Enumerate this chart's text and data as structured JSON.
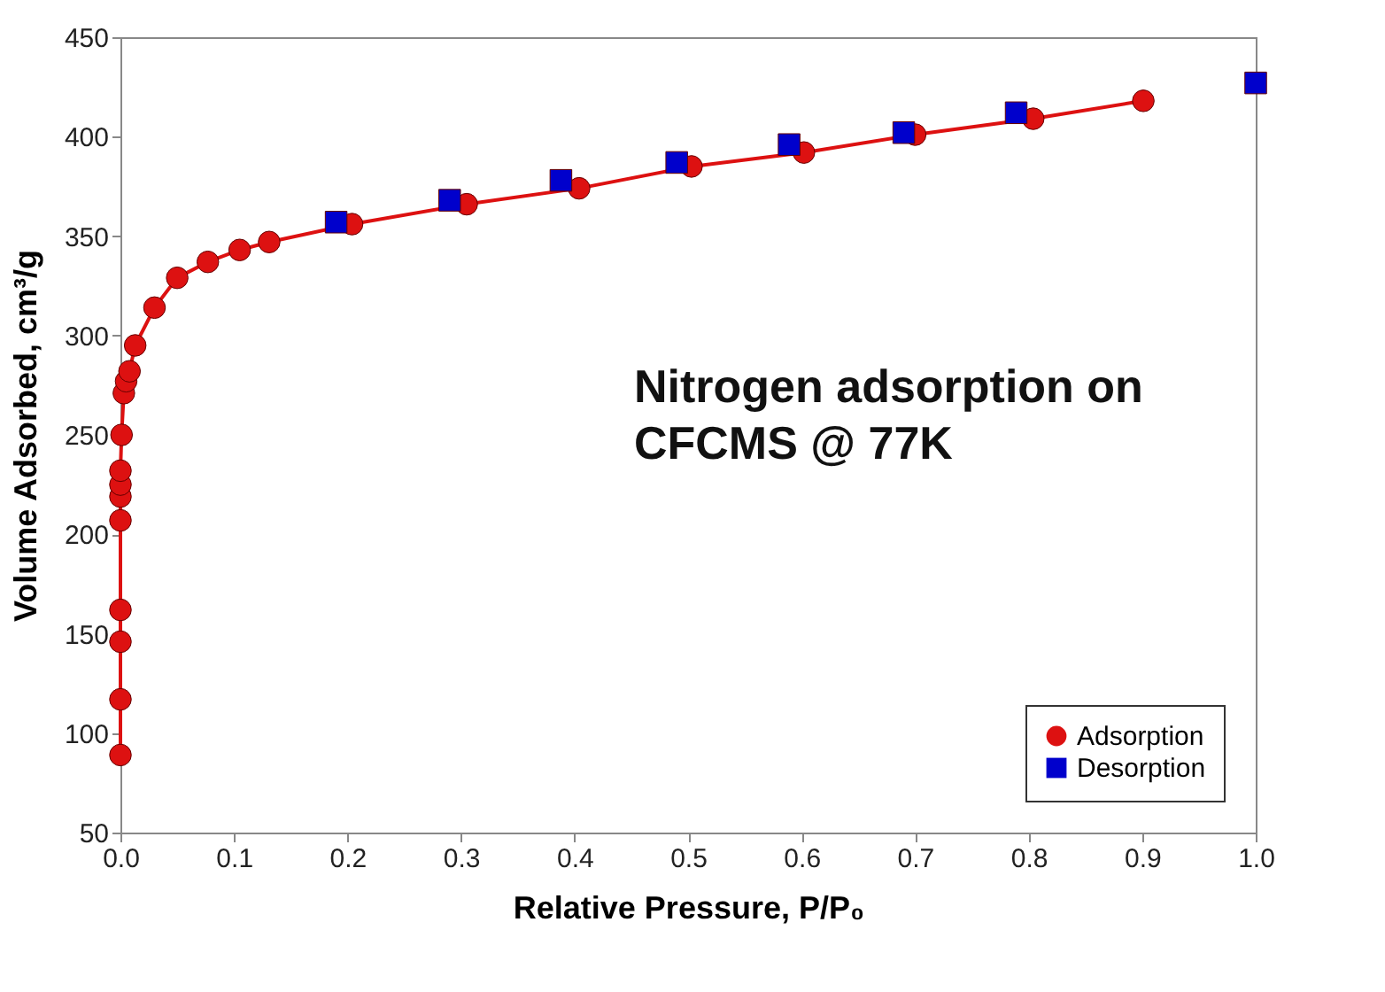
{
  "chart_data": {
    "type": "line",
    "xlabel": "Relative Pressure, P/P₀",
    "ylabel": "Volume Adsorbed, cm³/g",
    "annotations": [
      "Nitrogen adsorption on\nCFCMS @ 77K"
    ],
    "xlim": [
      0,
      1
    ],
    "xticks": [
      {
        "value": 0,
        "label": "0.0"
      },
      0.1,
      0.2,
      0.3,
      0.4,
      0.5,
      0.6,
      0.7,
      0.8,
      0.9,
      {
        "value": 1,
        "label": "1.0"
      }
    ],
    "ylim": [
      50,
      450
    ],
    "yticks": [
      50,
      100,
      150,
      200,
      250,
      300,
      350,
      400,
      450
    ],
    "grid": false,
    "legend": "bottom right",
    "series": [
      {
        "name": "Adsorption",
        "type": "line",
        "marker": "circle",
        "color": "#dd1111",
        "x": [
          0.0,
          0.0,
          0.0,
          0.0,
          0.0,
          0.0,
          0.0,
          0.0,
          0.001,
          0.003,
          0.005,
          0.008,
          0.013,
          0.03,
          0.05,
          0.077,
          0.105,
          0.131,
          0.204,
          0.305,
          0.404,
          0.503,
          0.602,
          0.7,
          0.804,
          0.901
        ],
        "values": [
          89,
          117,
          146,
          162,
          207,
          219,
          225,
          232,
          250,
          271,
          277,
          282,
          295,
          314,
          329,
          337,
          343,
          347,
          356,
          366,
          374,
          385,
          392,
          401,
          409,
          418
        ]
      },
      {
        "name": "Desorption",
        "type": "scatter",
        "marker": "square",
        "color": "#0000cc",
        "x": [
          0.19,
          0.29,
          0.388,
          0.49,
          0.589,
          0.69,
          0.789,
          1.0
        ],
        "values": [
          357,
          368,
          378,
          387,
          396,
          402,
          412,
          427
        ]
      }
    ]
  }
}
